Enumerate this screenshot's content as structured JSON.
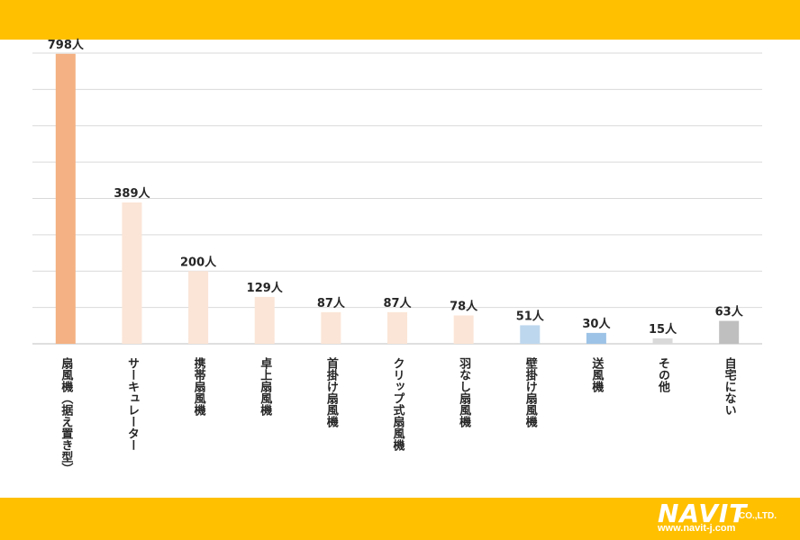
{
  "colors": {
    "band": "#FFC000",
    "grid": "#D9D9D9"
  },
  "chart_data": {
    "type": "bar",
    "unit_suffix": "人",
    "ylim": [
      0,
      800
    ],
    "grid": true,
    "categories": [
      "扇風機（据え置き型）",
      "サーキュレーター",
      "携帯扇風機",
      "卓上扇風機",
      "首掛け扇風機",
      "クリップ式扇風機",
      "羽なし扇風機",
      "壁掛け扇風機",
      "送風機",
      "その他",
      "自宅にない"
    ],
    "values": [
      798,
      389,
      200,
      129,
      87,
      87,
      78,
      51,
      30,
      15,
      63
    ],
    "bar_colors": [
      "#F4B183",
      "#FBE5D6",
      "#FBE5D6",
      "#FBE5D6",
      "#FBE5D6",
      "#FBE5D6",
      "#FBE5D6",
      "#BDD7EE",
      "#9DC3E6",
      "#D9D9D9",
      "#BFBFBF"
    ]
  },
  "logo": {
    "name": "NAVIT",
    "suffix": "CO.,LTD.",
    "url": "www.navit-j.com"
  }
}
